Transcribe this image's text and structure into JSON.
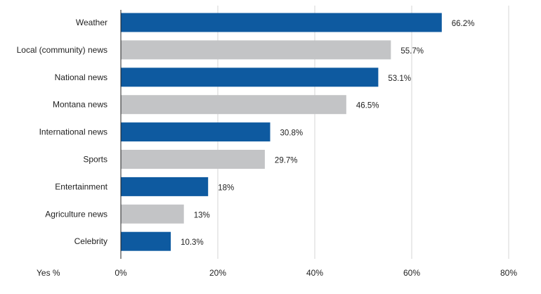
{
  "chart_data": {
    "type": "bar",
    "orientation": "horizontal",
    "categories": [
      "Weather",
      "Local (community) news",
      "National news",
      "Montana news",
      "International news",
      "Sports",
      "Entertainment",
      "Agriculture news",
      "Celebrity"
    ],
    "values": [
      66.2,
      55.7,
      53.1,
      46.5,
      30.8,
      29.7,
      18,
      13,
      10.3
    ],
    "value_labels": [
      "66.2%",
      "55.7%",
      "53.1%",
      "46.5%",
      "30.8%",
      "29.7%",
      "18%",
      "13%",
      "10.3%"
    ],
    "xlim": [
      0,
      80
    ],
    "xticks": [
      0,
      20,
      40,
      60,
      80
    ],
    "xtick_labels": [
      "0%",
      "20%",
      "40%",
      "60%",
      "80%"
    ],
    "xlabel": "Yes %",
    "ylabel": "",
    "title": "",
    "grid": "vertical",
    "legend": "none",
    "colors": {
      "primary": "#0e5aa0",
      "secondary": "#c3c4c6",
      "grid": "#d4d4d4",
      "axis": "#222222"
    }
  }
}
